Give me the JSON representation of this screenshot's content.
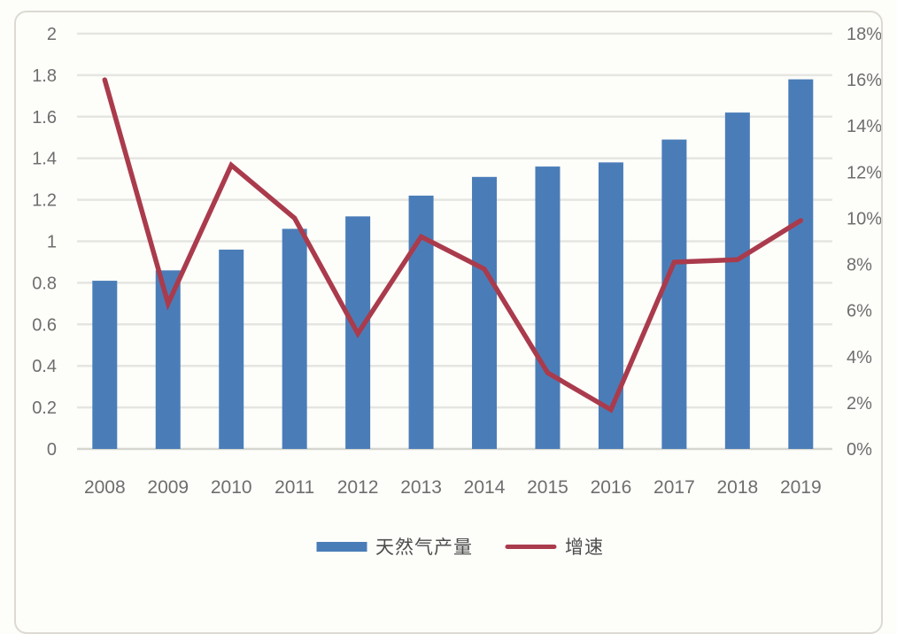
{
  "chart_data": {
    "type": "bar",
    "subtype": "combo-bar-line",
    "title": "",
    "categories": [
      "2008",
      "2009",
      "2010",
      "2011",
      "2012",
      "2013",
      "2014",
      "2015",
      "2016",
      "2017",
      "2018",
      "2019"
    ],
    "series": [
      {
        "name": "天然气产量",
        "type": "bar",
        "axis": "left",
        "color": "#4A7DB8",
        "values": [
          0.81,
          0.86,
          0.96,
          1.06,
          1.12,
          1.22,
          1.31,
          1.36,
          1.38,
          1.49,
          1.62,
          1.78
        ]
      },
      {
        "name": "增速",
        "type": "line",
        "axis": "right",
        "color": "#AA3B4C",
        "values": [
          16.0,
          6.3,
          12.3,
          10.0,
          5.0,
          9.2,
          7.8,
          3.3,
          1.7,
          8.1,
          8.2,
          9.9
        ],
        "unit": "%"
      }
    ],
    "left_axis": {
      "min": 0,
      "max": 2,
      "step": 0.2,
      "tick_labels": [
        "0",
        "0.2",
        "0.4",
        "0.6",
        "0.8",
        "1",
        "1.2",
        "1.4",
        "1.6",
        "1.8",
        "2"
      ]
    },
    "right_axis": {
      "min": 0,
      "max": 18,
      "step": 2,
      "tick_labels": [
        "0%",
        "2%",
        "4%",
        "6%",
        "8%",
        "10%",
        "12%",
        "14%",
        "16%",
        "18%"
      ]
    },
    "grid": true,
    "legend_position": "bottom",
    "legend": [
      {
        "label": "天然气产量",
        "marker": "bar",
        "color": "#4A7DB8"
      },
      {
        "label": "增速",
        "marker": "line",
        "color": "#AA3B4C"
      }
    ]
  },
  "colors": {
    "background": "#FDFDFA",
    "frame_border": "#DCDAD2",
    "gridline": "#E5E5E1",
    "baseline": "#D6D6D0",
    "axis_text": "#6E6E6E",
    "legend_text": "#4D4D4D"
  }
}
